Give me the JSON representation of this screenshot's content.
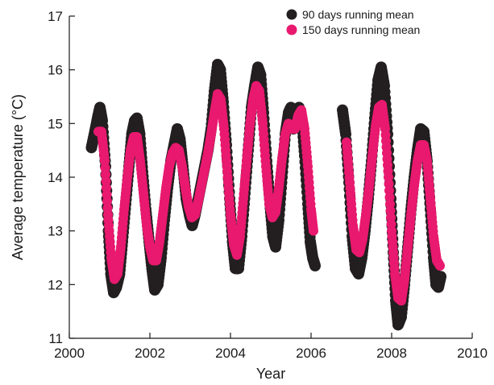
{
  "chart_data": {
    "type": "scatter",
    "xlabel": "Year",
    "ylabel": "Average temperature (°C)",
    "xlim": [
      2000,
      2010
    ],
    "ylim": [
      11,
      17
    ],
    "xticks": [
      2000,
      2002,
      2004,
      2006,
      2008,
      2010
    ],
    "yticks": [
      11,
      12,
      13,
      14,
      15,
      16,
      17
    ],
    "legend_position": "top-right",
    "grid": false,
    "series": [
      {
        "name": "90 days running mean",
        "color": "#231f20",
        "points": [
          [
            2000.55,
            14.55
          ],
          [
            2000.62,
            14.8
          ],
          [
            2000.7,
            15.1
          ],
          [
            2000.76,
            15.3
          ],
          [
            2000.82,
            15.05
          ],
          [
            2000.9,
            14.2
          ],
          [
            2000.97,
            13.0
          ],
          [
            2001.03,
            12.2
          ],
          [
            2001.1,
            11.85
          ],
          [
            2001.17,
            11.95
          ],
          [
            2001.25,
            12.2
          ],
          [
            2001.32,
            12.8
          ],
          [
            2001.4,
            13.5
          ],
          [
            2001.48,
            14.2
          ],
          [
            2001.55,
            14.8
          ],
          [
            2001.62,
            15.05
          ],
          [
            2001.68,
            15.1
          ],
          [
            2001.75,
            14.8
          ],
          [
            2001.82,
            14.1
          ],
          [
            2001.9,
            13.4
          ],
          [
            2001.98,
            12.8
          ],
          [
            2002.05,
            12.3
          ],
          [
            2002.12,
            11.9
          ],
          [
            2002.2,
            12.0
          ],
          [
            2002.28,
            12.5
          ],
          [
            2002.36,
            13.2
          ],
          [
            2002.44,
            13.8
          ],
          [
            2002.52,
            14.3
          ],
          [
            2002.6,
            14.6
          ],
          [
            2002.68,
            14.9
          ],
          [
            2002.75,
            14.7
          ],
          [
            2002.82,
            14.2
          ],
          [
            2002.9,
            13.6
          ],
          [
            2002.98,
            13.3
          ],
          [
            2003.05,
            13.1
          ],
          [
            2003.12,
            13.3
          ],
          [
            2003.2,
            13.6
          ],
          [
            2003.28,
            13.9
          ],
          [
            2003.36,
            14.2
          ],
          [
            2003.44,
            14.5
          ],
          [
            2003.52,
            14.9
          ],
          [
            2003.6,
            15.6
          ],
          [
            2003.68,
            16.1
          ],
          [
            2003.75,
            16.0
          ],
          [
            2003.82,
            15.4
          ],
          [
            2003.9,
            14.6
          ],
          [
            2003.98,
            13.6
          ],
          [
            2004.05,
            12.8
          ],
          [
            2004.12,
            12.3
          ],
          [
            2004.2,
            12.3
          ],
          [
            2004.28,
            12.9
          ],
          [
            2004.36,
            13.7
          ],
          [
            2004.44,
            14.5
          ],
          [
            2004.52,
            15.3
          ],
          [
            2004.6,
            15.7
          ],
          [
            2004.68,
            16.05
          ],
          [
            2004.75,
            15.9
          ],
          [
            2004.82,
            15.2
          ],
          [
            2004.9,
            14.3
          ],
          [
            2004.98,
            13.5
          ],
          [
            2005.05,
            12.9
          ],
          [
            2005.12,
            12.7
          ],
          [
            2005.2,
            13.2
          ],
          [
            2005.28,
            14.0
          ],
          [
            2005.36,
            14.8
          ],
          [
            2005.44,
            15.2
          ],
          [
            2005.5,
            15.3
          ],
          [
            2005.56,
            14.9
          ],
          [
            2005.62,
            15.0
          ],
          [
            2005.7,
            15.3
          ],
          [
            2005.77,
            15.1
          ],
          [
            2005.84,
            14.4
          ],
          [
            2005.92,
            13.5
          ],
          [
            2005.98,
            12.8
          ],
          [
            2006.04,
            12.5
          ],
          [
            2006.1,
            12.35
          ],
          [
            2006.78,
            15.25
          ],
          [
            2006.86,
            14.8
          ],
          [
            2006.94,
            13.9
          ],
          [
            2007.02,
            12.9
          ],
          [
            2007.1,
            12.3
          ],
          [
            2007.18,
            12.2
          ],
          [
            2007.26,
            12.5
          ],
          [
            2007.34,
            13.0
          ],
          [
            2007.42,
            13.6
          ],
          [
            2007.5,
            14.3
          ],
          [
            2007.58,
            15.1
          ],
          [
            2007.66,
            15.8
          ],
          [
            2007.74,
            16.05
          ],
          [
            2007.82,
            15.7
          ],
          [
            2007.9,
            14.8
          ],
          [
            2007.98,
            13.6
          ],
          [
            2008.04,
            12.6
          ],
          [
            2008.1,
            11.7
          ],
          [
            2008.16,
            11.25
          ],
          [
            2008.24,
            11.4
          ],
          [
            2008.32,
            12.0
          ],
          [
            2008.4,
            12.7
          ],
          [
            2008.48,
            13.4
          ],
          [
            2008.56,
            14.0
          ],
          [
            2008.64,
            14.5
          ],
          [
            2008.72,
            14.9
          ],
          [
            2008.8,
            14.85
          ],
          [
            2008.88,
            14.3
          ],
          [
            2008.96,
            13.4
          ],
          [
            2009.04,
            12.5
          ],
          [
            2009.1,
            12.0
          ],
          [
            2009.16,
            11.95
          ],
          [
            2009.22,
            12.15
          ]
        ]
      },
      {
        "name": "150 days running mean",
        "color": "#e8196f",
        "points": [
          [
            2000.72,
            14.85
          ],
          [
            2000.8,
            14.85
          ],
          [
            2000.88,
            14.3
          ],
          [
            2000.96,
            13.3
          ],
          [
            2001.04,
            12.5
          ],
          [
            2001.12,
            12.1
          ],
          [
            2001.2,
            12.2
          ],
          [
            2001.28,
            12.7
          ],
          [
            2001.36,
            13.4
          ],
          [
            2001.44,
            14.0
          ],
          [
            2001.52,
            14.5
          ],
          [
            2001.6,
            14.75
          ],
          [
            2001.68,
            14.75
          ],
          [
            2001.76,
            14.3
          ],
          [
            2001.84,
            13.7
          ],
          [
            2001.92,
            13.1
          ],
          [
            2002.0,
            12.7
          ],
          [
            2002.08,
            12.45
          ],
          [
            2002.16,
            12.45
          ],
          [
            2002.24,
            12.8
          ],
          [
            2002.32,
            13.3
          ],
          [
            2002.4,
            13.8
          ],
          [
            2002.48,
            14.2
          ],
          [
            2002.56,
            14.45
          ],
          [
            2002.64,
            14.55
          ],
          [
            2002.72,
            14.5
          ],
          [
            2002.8,
            14.2
          ],
          [
            2002.88,
            13.8
          ],
          [
            2002.96,
            13.45
          ],
          [
            2003.04,
            13.25
          ],
          [
            2003.12,
            13.3
          ],
          [
            2003.2,
            13.55
          ],
          [
            2003.28,
            13.85
          ],
          [
            2003.36,
            14.15
          ],
          [
            2003.44,
            14.45
          ],
          [
            2003.52,
            14.8
          ],
          [
            2003.6,
            15.2
          ],
          [
            2003.68,
            15.55
          ],
          [
            2003.76,
            15.45
          ],
          [
            2003.84,
            14.9
          ],
          [
            2003.92,
            14.1
          ],
          [
            2004.0,
            13.3
          ],
          [
            2004.08,
            12.75
          ],
          [
            2004.16,
            12.55
          ],
          [
            2004.24,
            12.9
          ],
          [
            2004.32,
            13.6
          ],
          [
            2004.4,
            14.3
          ],
          [
            2004.48,
            14.95
          ],
          [
            2004.56,
            15.45
          ],
          [
            2004.64,
            15.7
          ],
          [
            2004.72,
            15.6
          ],
          [
            2004.8,
            15.0
          ],
          [
            2004.88,
            14.2
          ],
          [
            2004.96,
            13.5
          ],
          [
            2005.04,
            13.25
          ],
          [
            2005.12,
            13.35
          ],
          [
            2005.2,
            13.8
          ],
          [
            2005.28,
            14.35
          ],
          [
            2005.36,
            14.8
          ],
          [
            2005.44,
            15.0
          ],
          [
            2005.52,
            14.9
          ],
          [
            2005.6,
            14.9
          ],
          [
            2005.68,
            15.15
          ],
          [
            2005.76,
            15.25
          ],
          [
            2005.84,
            14.9
          ],
          [
            2005.92,
            14.2
          ],
          [
            2006.0,
            13.4
          ],
          [
            2006.06,
            13.0
          ],
          [
            2006.88,
            14.65
          ],
          [
            2006.96,
            13.9
          ],
          [
            2007.04,
            13.1
          ],
          [
            2007.12,
            12.65
          ],
          [
            2007.2,
            12.6
          ],
          [
            2007.28,
            12.85
          ],
          [
            2007.36,
            13.3
          ],
          [
            2007.44,
            13.8
          ],
          [
            2007.52,
            14.4
          ],
          [
            2007.6,
            14.95
          ],
          [
            2007.68,
            15.3
          ],
          [
            2007.76,
            15.35
          ],
          [
            2007.84,
            14.9
          ],
          [
            2007.92,
            14.0
          ],
          [
            2008.0,
            13.0
          ],
          [
            2008.08,
            12.2
          ],
          [
            2008.16,
            11.75
          ],
          [
            2008.24,
            11.7
          ],
          [
            2008.32,
            12.1
          ],
          [
            2008.4,
            12.7
          ],
          [
            2008.48,
            13.3
          ],
          [
            2008.56,
            13.85
          ],
          [
            2008.64,
            14.3
          ],
          [
            2008.72,
            14.6
          ],
          [
            2008.8,
            14.6
          ],
          [
            2008.88,
            14.3
          ],
          [
            2008.96,
            13.6
          ],
          [
            2009.04,
            12.9
          ],
          [
            2009.12,
            12.45
          ],
          [
            2009.2,
            12.35
          ]
        ]
      }
    ]
  }
}
